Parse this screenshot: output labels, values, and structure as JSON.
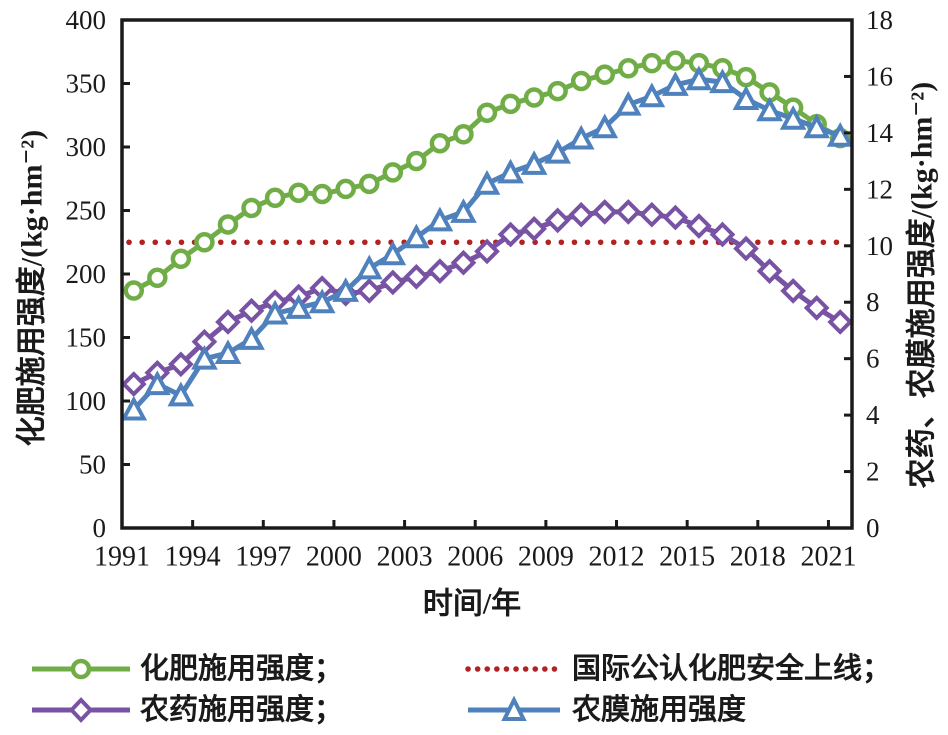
{
  "chart": {
    "x_axis_title": "时间/年",
    "left_axis_title": "化肥施用强度/(kg·hm⁻²)",
    "right_axis_title": "农药、农膜施用强度/(kg·hm⁻²)",
    "x_tick_labels": [
      "1991",
      "1994",
      "1997",
      "2000",
      "2003",
      "2006",
      "2009",
      "2012",
      "2015",
      "2018",
      "2021"
    ]
  },
  "chart_data": {
    "type": "line",
    "x": [
      1991,
      1992,
      1993,
      1994,
      1995,
      1996,
      1997,
      1998,
      1999,
      2000,
      2001,
      2002,
      2003,
      2004,
      2005,
      2006,
      2007,
      2008,
      2009,
      2010,
      2011,
      2012,
      2013,
      2014,
      2015,
      2016,
      2017,
      2018,
      2019,
      2020,
      2021
    ],
    "xlabel": "时间/年",
    "left_ylabel": "化肥施用强度/(kg·hm⁻²)",
    "right_ylabel": "农药、农膜施用强度/(kg·hm⁻²)",
    "left_ylim": [
      0,
      400
    ],
    "left_step": 50,
    "right_ylim": [
      0,
      18
    ],
    "right_step": 2,
    "grid": false,
    "legend_position": "below",
    "series": [
      {
        "id": "fertilizer",
        "name": "化肥施用强度",
        "axis": "left",
        "marker": "circle",
        "color": "#70AD47",
        "values": [
          187,
          197,
          212,
          225,
          239,
          252,
          260,
          264,
          263,
          267,
          271,
          280,
          289,
          303,
          310,
          327,
          334,
          339,
          344,
          352,
          357,
          362,
          366,
          368,
          366,
          362,
          355,
          343,
          331,
          318,
          307
        ]
      },
      {
        "id": "pesticide",
        "name": "农药施用强度",
        "axis": "right",
        "marker": "diamond",
        "color": "#7852A3",
        "values": [
          5.1,
          5.5,
          5.8,
          6.6,
          7.3,
          7.7,
          8.0,
          8.2,
          8.5,
          8.3,
          8.4,
          8.7,
          8.9,
          9.1,
          9.4,
          9.8,
          10.4,
          10.6,
          10.9,
          11.1,
          11.2,
          11.2,
          11.1,
          11.0,
          10.7,
          10.4,
          9.9,
          9.1,
          8.4,
          7.8,
          7.3
        ]
      },
      {
        "id": "film",
        "name": "农膜施用强度",
        "axis": "right",
        "marker": "triangle",
        "color": "#4F81BD",
        "values": [
          4.2,
          5.1,
          4.7,
          6.0,
          6.2,
          6.7,
          7.6,
          7.8,
          8.0,
          8.4,
          9.2,
          9.7,
          10.3,
          10.9,
          11.2,
          12.2,
          12.6,
          12.9,
          13.3,
          13.8,
          14.2,
          15.0,
          15.3,
          15.7,
          15.9,
          15.8,
          15.2,
          14.8,
          14.5,
          14.2,
          13.9
        ]
      }
    ],
    "safety_line": {
      "name": "国际公认化肥安全上线",
      "axis": "left",
      "value": 225,
      "style": "dotted",
      "color": "#B22222"
    }
  },
  "legend": {
    "entries": [
      {
        "id": "fertilizer",
        "label": "化肥施用强度；"
      },
      {
        "id": "safety",
        "label": "国际公认化肥安全上线；"
      },
      {
        "id": "pesticide",
        "label": "农药施用强度；"
      },
      {
        "id": "film",
        "label": "农膜施用强度"
      }
    ]
  },
  "colors": {
    "axis": "#1a1a1a",
    "background": "#ffffff"
  }
}
